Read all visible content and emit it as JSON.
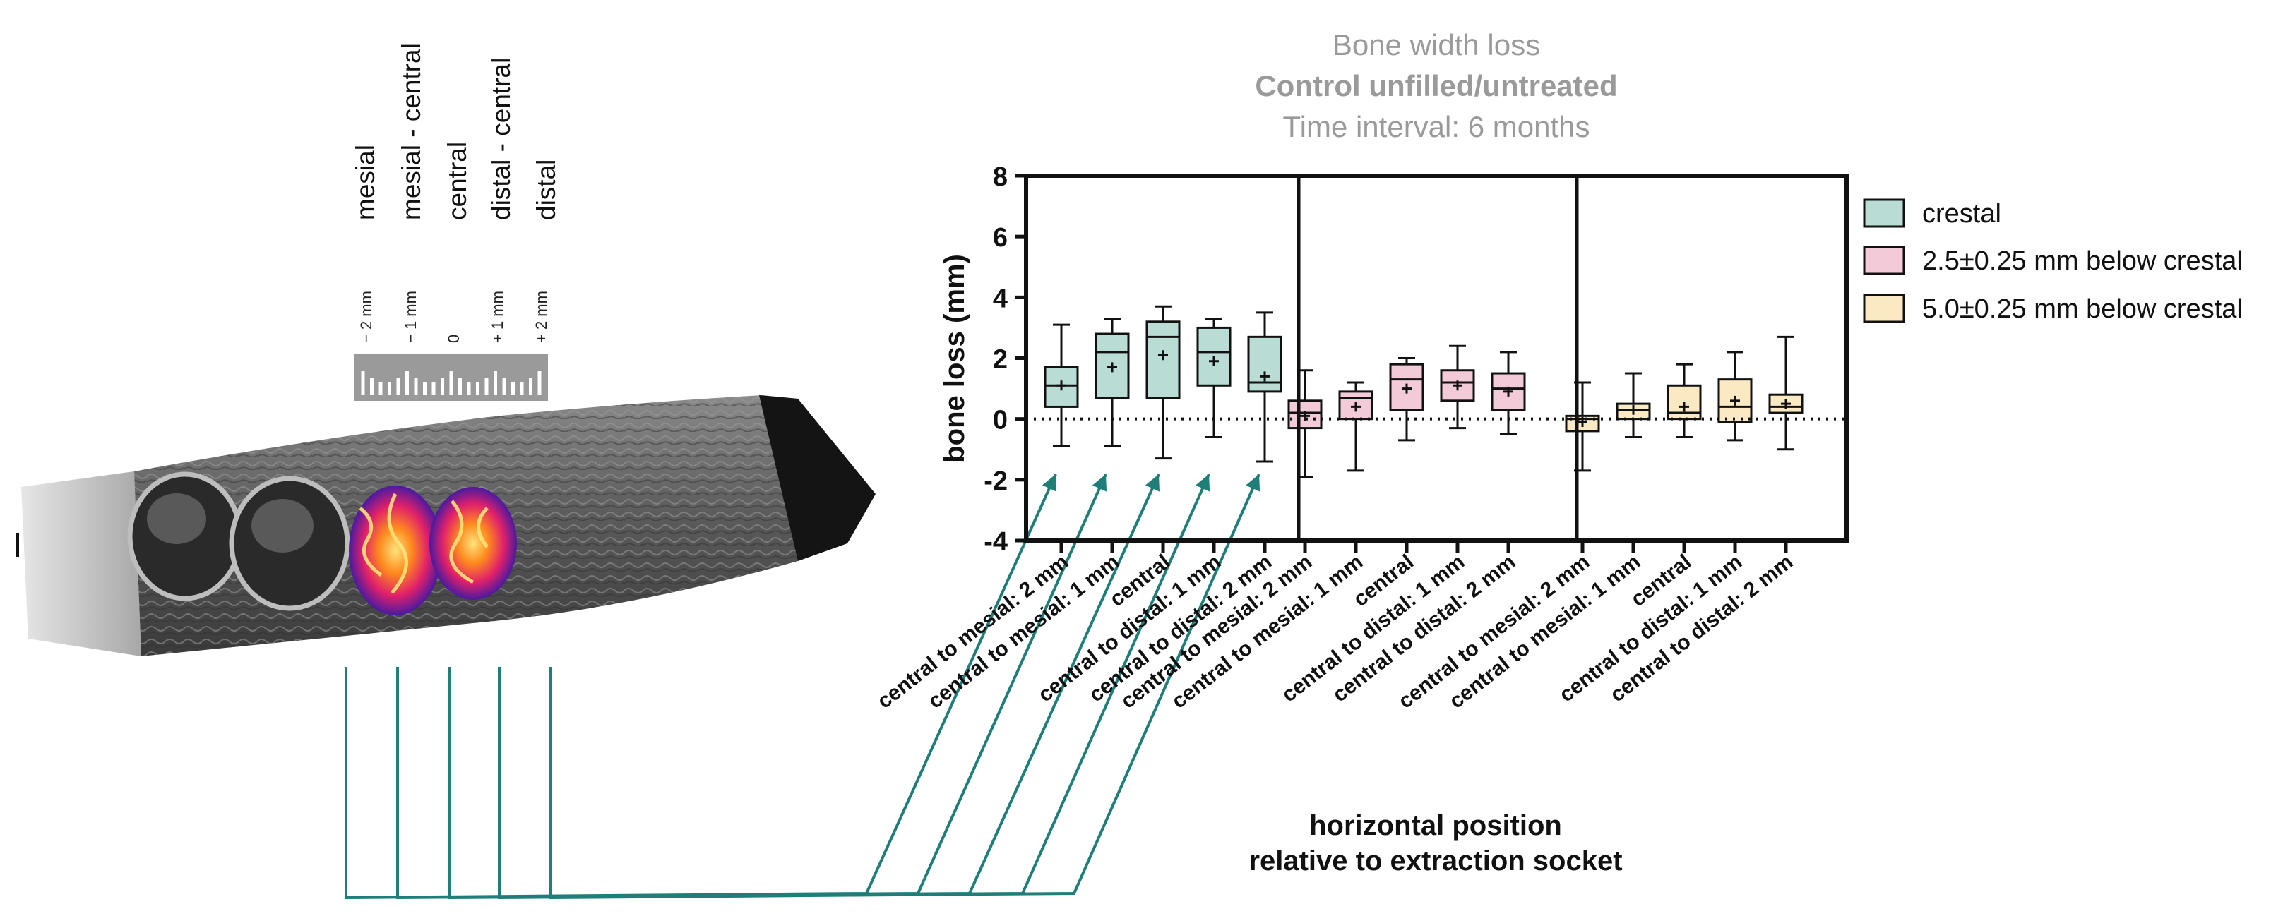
{
  "title": {
    "line1": "Bone width loss",
    "line2": "Control unfilled/untreated",
    "line3": "Time interval: 6 months"
  },
  "position_labels": [
    "mesial",
    "mesial - central",
    "central",
    "distal - central",
    "distal"
  ],
  "ruler_ticks": [
    "− 2 mm",
    "− 1 mm",
    "0",
    "+ 1 mm",
    "+ 2 mm"
  ],
  "colors": {
    "crestal": "#b9ddd5",
    "mid": "#f3cad8",
    "deep": "#fbe9c3",
    "connector": "#1f7f78",
    "title": "#9a9a9a"
  },
  "chart_data": {
    "type": "box",
    "ylabel": "bone loss (mm)",
    "xlabel": [
      "horizontal position",
      "relative to extraction socket"
    ],
    "ylim": [
      -4,
      8
    ],
    "yticks": [
      -4,
      -2,
      0,
      2,
      4,
      6,
      8
    ],
    "reference_line": 0,
    "legend": [
      {
        "name": "crestal",
        "color": "#b9ddd5"
      },
      {
        "name": "2.5±0.25 mm below crestal",
        "color": "#f3cad8"
      },
      {
        "name": "5.0±0.25 mm below crestal",
        "color": "#fbe9c3"
      }
    ],
    "categories": [
      "central to mesial: 2 mm",
      "central to mesial: 1 mm",
      "central",
      "central to distal: 1 mm",
      "central to distal: 2 mm"
    ],
    "groups": [
      {
        "name": "crestal",
        "color": "#b9ddd5",
        "boxes": [
          {
            "min": -0.9,
            "q1": 0.4,
            "median": 1.1,
            "q3": 1.7,
            "max": 3.1,
            "mean": 1.1
          },
          {
            "min": -0.9,
            "q1": 0.7,
            "median": 2.2,
            "q3": 2.8,
            "max": 3.3,
            "mean": 1.7
          },
          {
            "min": -1.3,
            "q1": 0.7,
            "median": 2.7,
            "q3": 3.2,
            "max": 3.7,
            "mean": 2.1
          },
          {
            "min": -0.6,
            "q1": 1.1,
            "median": 2.2,
            "q3": 3.0,
            "max": 3.3,
            "mean": 1.9
          },
          {
            "min": -1.4,
            "q1": 0.9,
            "median": 1.2,
            "q3": 2.7,
            "max": 3.5,
            "mean": 1.4
          }
        ]
      },
      {
        "name": "2.5±0.25 mm below crestal",
        "color": "#f3cad8",
        "boxes": [
          {
            "min": -1.9,
            "q1": -0.3,
            "median": 0.2,
            "q3": 0.6,
            "max": 1.6,
            "mean": 0.1
          },
          {
            "min": -1.7,
            "q1": 0.0,
            "median": 0.7,
            "q3": 0.9,
            "max": 1.2,
            "mean": 0.4
          },
          {
            "min": -0.7,
            "q1": 0.3,
            "median": 1.3,
            "q3": 1.8,
            "max": 2.0,
            "mean": 1.0
          },
          {
            "min": -0.3,
            "q1": 0.6,
            "median": 1.2,
            "q3": 1.6,
            "max": 2.4,
            "mean": 1.1
          },
          {
            "min": -0.5,
            "q1": 0.3,
            "median": 1.0,
            "q3": 1.5,
            "max": 2.2,
            "mean": 0.9
          }
        ]
      },
      {
        "name": "5.0±0.25 mm below crestal",
        "color": "#fbe9c3",
        "boxes": [
          {
            "min": -1.7,
            "q1": -0.4,
            "median": 0.0,
            "q3": 0.1,
            "max": 1.2,
            "mean": -0.1
          },
          {
            "min": -0.6,
            "q1": 0.0,
            "median": 0.3,
            "q3": 0.5,
            "max": 1.5,
            "mean": 0.3
          },
          {
            "min": -0.6,
            "q1": 0.0,
            "median": 0.2,
            "q3": 1.1,
            "max": 1.8,
            "mean": 0.4
          },
          {
            "min": -0.7,
            "q1": -0.1,
            "median": 0.4,
            "q3": 1.3,
            "max": 2.2,
            "mean": 0.6
          },
          {
            "min": -1.0,
            "q1": 0.2,
            "median": 0.4,
            "q3": 0.8,
            "max": 2.7,
            "mean": 0.5
          }
        ]
      }
    ]
  }
}
